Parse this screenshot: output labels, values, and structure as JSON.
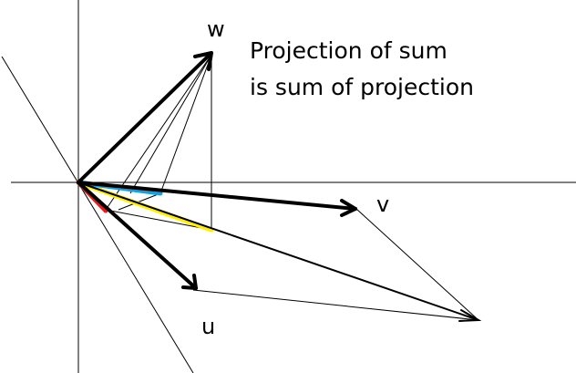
{
  "labels": {
    "w": "w",
    "v": "v",
    "u": "u"
  },
  "caption": {
    "line1": "Projection of sum",
    "line2": "is sum of projection"
  },
  "colors": {
    "stroke": "#000000",
    "proj_w": "#1a9fd9",
    "proj_sum": "#ffee00",
    "proj_u": "#e61b1b"
  }
}
